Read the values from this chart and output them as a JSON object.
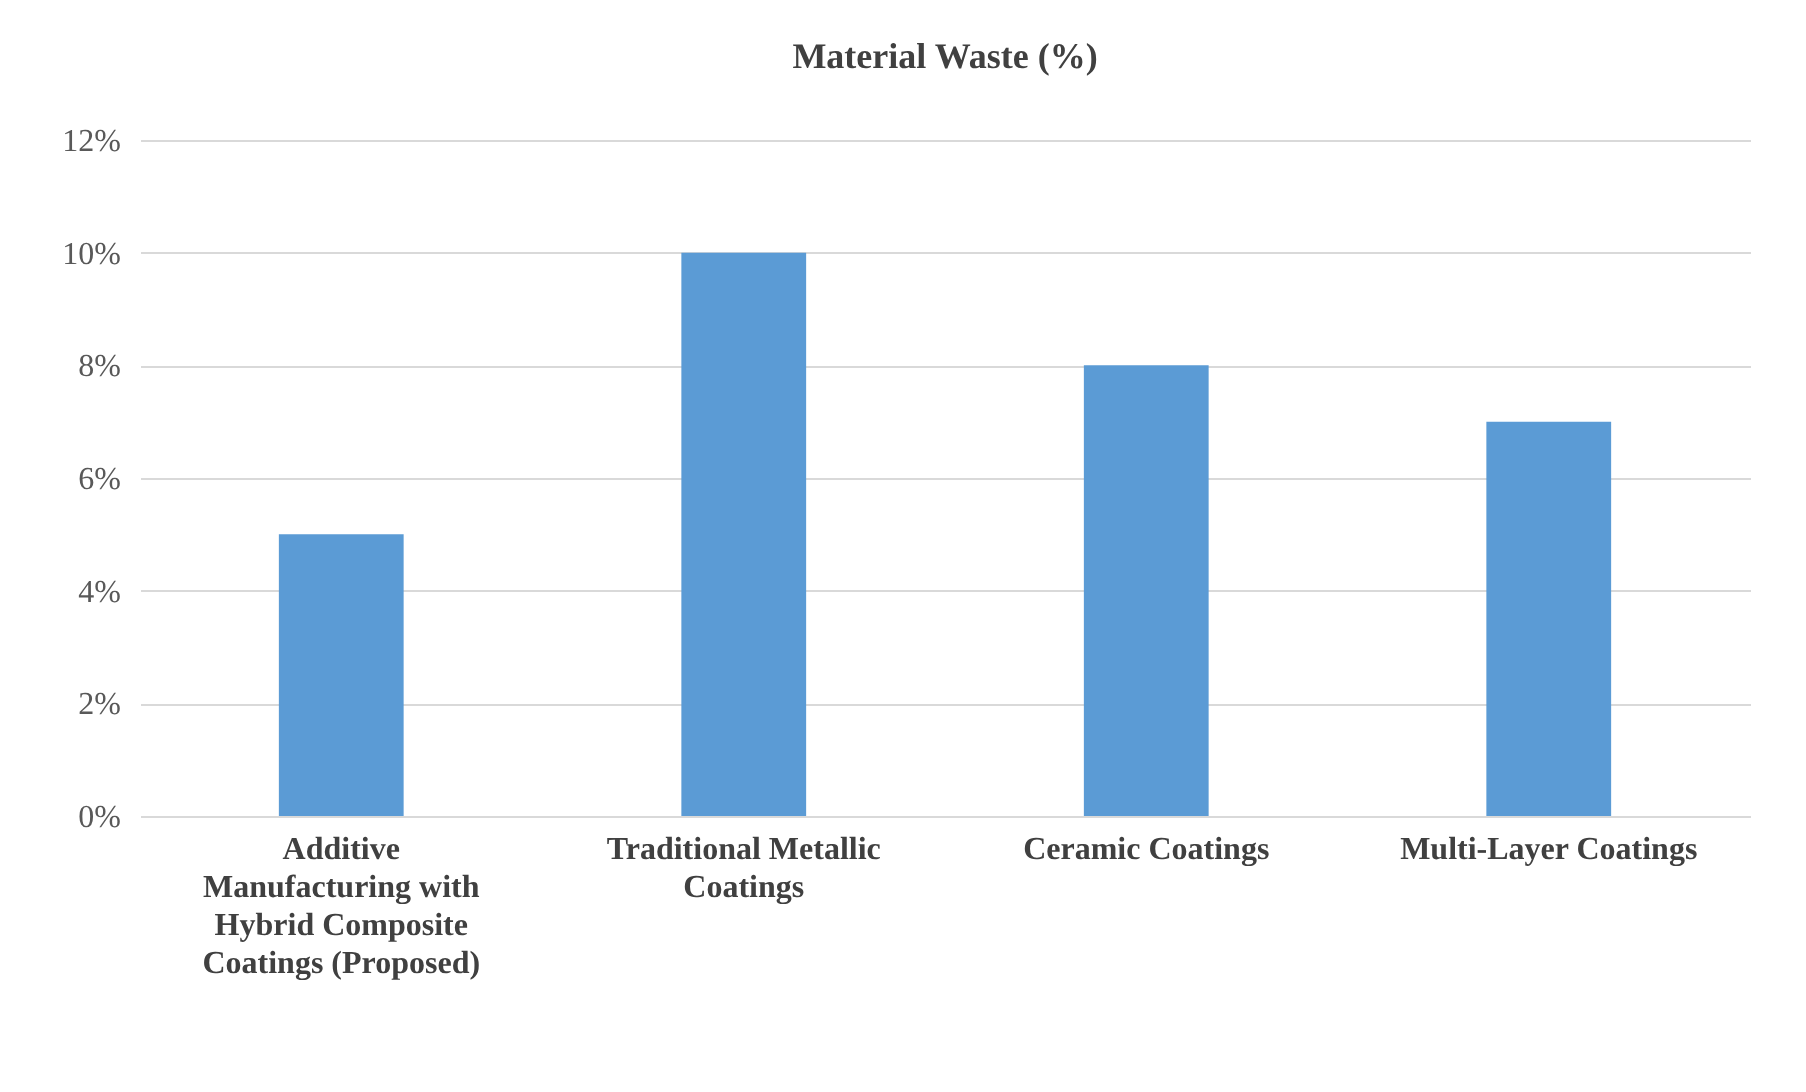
{
  "chart_data": {
    "type": "bar",
    "title": "Material Waste (%)",
    "categories": [
      "Additive Manufacturing with Hybrid Composite Coatings (Proposed)",
      "Traditional Metallic Coatings",
      "Ceramic Coatings",
      "Multi-Layer Coatings"
    ],
    "values": [
      5,
      10,
      8,
      7
    ],
    "color": "#5b9bd5",
    "ylim": [
      0,
      12
    ],
    "yticks": [
      {
        "value": 0,
        "label": "0%"
      },
      {
        "value": 2,
        "label": "2%"
      },
      {
        "value": 4,
        "label": "4%"
      },
      {
        "value": 6,
        "label": "6%"
      },
      {
        "value": 8,
        "label": "8%"
      },
      {
        "value": 10,
        "label": "10%"
      },
      {
        "value": 12,
        "label": "12%"
      }
    ],
    "grid": "y"
  }
}
